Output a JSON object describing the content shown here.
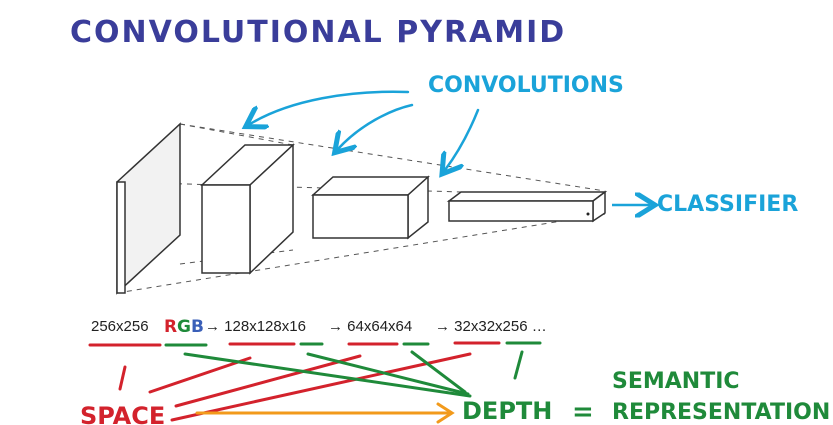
{
  "title": "CONVOLUTIONAL PYRAMID",
  "labels": {
    "convolutions": "CONVOLUTIONS",
    "classifier": "CLASSIFIER",
    "space": "SPACE",
    "depth": "DEPTH",
    "equals": "=",
    "semantic": "SEMANTIC",
    "representation": "REPRESENTATION"
  },
  "dimensions": {
    "input": "256x256",
    "rgb_r": "R",
    "rgb_g": "G",
    "rgb_b": "B",
    "arrow1": "→ 128x128x16",
    "arrow2": "→ 64x64x64",
    "arrow3": "→ 32x32x256 …"
  },
  "colors": {
    "title": "#3a3d9a",
    "convolutions": "#1aa3d9",
    "space": "#d3222c",
    "depth": "#1f8a3a",
    "arrow_orange": "#f29a1b",
    "rgb_blue": "#3a5fb8"
  }
}
